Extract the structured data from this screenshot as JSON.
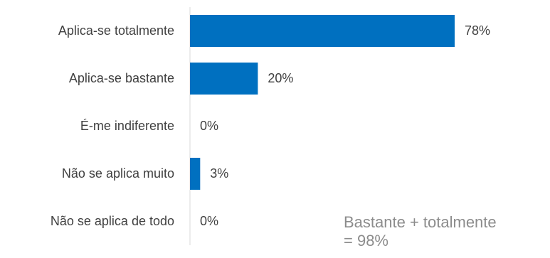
{
  "chart_data": {
    "type": "bar",
    "orientation": "horizontal",
    "categories": [
      "Aplica-se totalmente",
      "Aplica-se bastante",
      "É-me indiferente",
      "Não se aplica muito",
      "Não se aplica de todo"
    ],
    "values": [
      78,
      20,
      0,
      3,
      0
    ],
    "value_labels": [
      "78%",
      "20%",
      "0%",
      "3%",
      "0%"
    ],
    "value_suffix": "%",
    "xlim": [
      0,
      100
    ],
    "bar_color": "#0070c0",
    "grid": false,
    "annotation_line1": "Bastante + totalmente",
    "annotation_line2": "= 98%"
  }
}
